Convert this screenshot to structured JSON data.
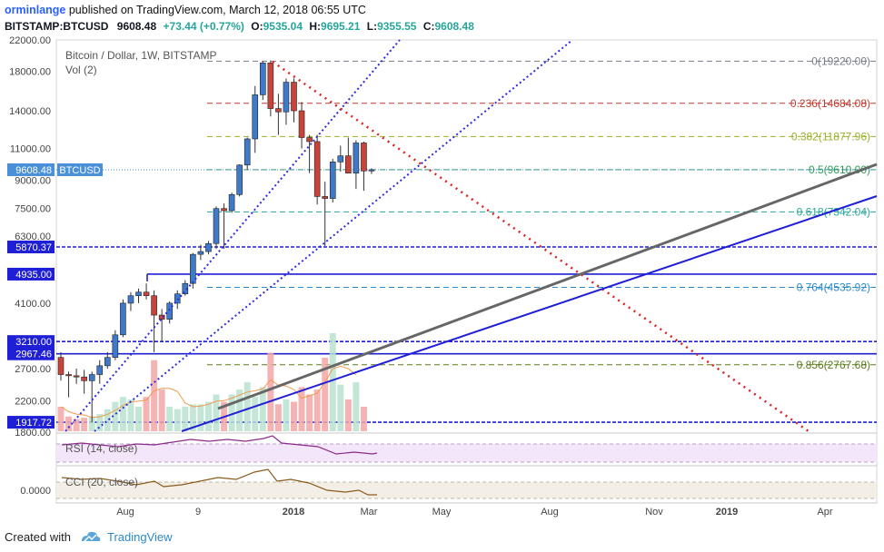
{
  "header": {
    "username": "orminlange",
    "published_text": " published on TradingView.com, March 12, 2018 06:55 UTC",
    "symbol": "BITSTAMP:BTCUSD",
    "last": "9608.48",
    "change": "+73.44 (+0.77%)",
    "ohlc": {
      "o_label": "O:",
      "o": "9535.04",
      "h_label": "H:",
      "h": "9695.21",
      "l_label": "L:",
      "l": "9355.55",
      "c_label": "C:",
      "c": "9608.48"
    }
  },
  "legend": {
    "title": "Bitcoin / Dollar, 1W, BITSTAMP",
    "vol": "Vol (2)",
    "rsi": "RSI (14, close)",
    "cci": "CCI (20, close)"
  },
  "price_axis": {
    "ticks": [
      "22000.00",
      "18000.00",
      "14000.00",
      "11000.00",
      "9000.00",
      "7500.00",
      "6300.00",
      "4100.00",
      "2700.00",
      "2200.00",
      "1800.00"
    ],
    "badges": [
      {
        "label": "9608.48",
        "color": "#4a90d9",
        "value": 9608.48
      },
      {
        "label": "5870.37",
        "color": "#1f1fd6",
        "value": 5870.37
      },
      {
        "label": "4935.00",
        "color": "#1f1fd6",
        "value": 4935.0
      },
      {
        "label": "3210.00",
        "color": "#1f1fd6",
        "value": 3210.0
      },
      {
        "label": "2967.46",
        "color": "#1f1fd6",
        "value": 2967.46
      },
      {
        "label": "1917.72",
        "color": "#1f1fd6",
        "value": 1917.72
      }
    ],
    "symbol_tag": "BTCUSD",
    "cci_tick": "0.0000"
  },
  "time_axis": [
    "Aug",
    "9",
    "2018",
    "Mar",
    "May",
    "Aug",
    "Nov",
    "2019",
    "Apr"
  ],
  "fib_levels": [
    {
      "ratio": "0",
      "label": "0(19220.00)",
      "price": 19220,
      "color": "#787b86"
    },
    {
      "ratio": "0.236",
      "label": "0.236(14684.08)",
      "price": 14684.08,
      "color": "#c0392b"
    },
    {
      "ratio": "0.382",
      "label": "0.382(11877.96)",
      "price": 11877.96,
      "color": "#9bb02a"
    },
    {
      "ratio": "0.5",
      "label": "0.5(9610.00)",
      "price": 9610,
      "color": "#2e9e5b"
    },
    {
      "ratio": "0.618",
      "label": "0.618(7342.04)",
      "price": 7342.04,
      "color": "#26a69a"
    },
    {
      "ratio": "0.764",
      "label": "0.764(4535.92)",
      "price": 4535.92,
      "color": "#2a8ac8"
    },
    {
      "ratio": "0.856",
      "label": "0.856(2767.68)",
      "price": 2767.68,
      "color": "#5a7a1a"
    }
  ],
  "chart_data": {
    "type": "candlestick",
    "series_name": "BTCUSD weekly",
    "candles": [
      {
        "o": 2900,
        "h": 3000,
        "l": 2500,
        "c": 2600
      },
      {
        "o": 2600,
        "h": 2650,
        "l": 2250,
        "c": 2580
      },
      {
        "o": 2580,
        "h": 2700,
        "l": 2450,
        "c": 2560
      },
      {
        "o": 2560,
        "h": 2680,
        "l": 2300,
        "c": 2500
      },
      {
        "o": 2500,
        "h": 2650,
        "l": 1917.72,
        "c": 2600
      },
      {
        "o": 2600,
        "h": 2850,
        "l": 2450,
        "c": 2750
      },
      {
        "o": 2750,
        "h": 3000,
        "l": 2700,
        "c": 2900
      },
      {
        "o": 2900,
        "h": 3450,
        "l": 2850,
        "c": 3350
      },
      {
        "o": 3350,
        "h": 4200,
        "l": 3300,
        "c": 4100
      },
      {
        "o": 4100,
        "h": 4400,
        "l": 3900,
        "c": 4300
      },
      {
        "o": 4300,
        "h": 4500,
        "l": 4100,
        "c": 4400
      },
      {
        "o": 4400,
        "h": 4650,
        "l": 4200,
        "c": 4300
      },
      {
        "o": 4300,
        "h": 4450,
        "l": 3000,
        "c": 3800
      },
      {
        "o": 3800,
        "h": 3950,
        "l": 3200,
        "c": 3700
      },
      {
        "o": 3700,
        "h": 4150,
        "l": 3600,
        "c": 4100
      },
      {
        "o": 4100,
        "h": 4450,
        "l": 3950,
        "c": 4350
      },
      {
        "o": 4350,
        "h": 4750,
        "l": 4300,
        "c": 4650
      },
      {
        "o": 4650,
        "h": 5650,
        "l": 4500,
        "c": 5600
      },
      {
        "o": 5600,
        "h": 5950,
        "l": 5400,
        "c": 5700
      },
      {
        "o": 5700,
        "h": 6100,
        "l": 5600,
        "c": 6000
      },
      {
        "o": 6000,
        "h": 7600,
        "l": 5800,
        "c": 7500
      },
      {
        "o": 7500,
        "h": 7750,
        "l": 5800,
        "c": 7400
      },
      {
        "o": 7400,
        "h": 8300,
        "l": 7300,
        "c": 8200
      },
      {
        "o": 8200,
        "h": 9950,
        "l": 8100,
        "c": 9900
      },
      {
        "o": 9900,
        "h": 11800,
        "l": 9600,
        "c": 11700
      },
      {
        "o": 11700,
        "h": 16400,
        "l": 10700,
        "c": 15500
      },
      {
        "o": 15500,
        "h": 19220,
        "l": 15000,
        "c": 19000
      },
      {
        "o": 19000,
        "h": 19300,
        "l": 13500,
        "c": 14200
      },
      {
        "o": 14200,
        "h": 15600,
        "l": 12000,
        "c": 13900
      },
      {
        "o": 13900,
        "h": 17200,
        "l": 12800,
        "c": 16800
      },
      {
        "o": 16800,
        "h": 17200,
        "l": 13000,
        "c": 14000
      },
      {
        "o": 14000,
        "h": 14800,
        "l": 11000,
        "c": 11800
      },
      {
        "o": 11800,
        "h": 12000,
        "l": 9400,
        "c": 11500
      },
      {
        "o": 11500,
        "h": 12000,
        "l": 7700,
        "c": 8100
      },
      {
        "o": 8100,
        "h": 8900,
        "l": 5900,
        "c": 8000
      },
      {
        "o": 8000,
        "h": 10300,
        "l": 7800,
        "c": 10100
      },
      {
        "o": 10100,
        "h": 11200,
        "l": 9500,
        "c": 10500
      },
      {
        "o": 10500,
        "h": 11800,
        "l": 9400,
        "c": 9400
      },
      {
        "o": 9400,
        "h": 11600,
        "l": 8500,
        "c": 11400
      },
      {
        "o": 11400,
        "h": 11500,
        "l": 8400,
        "c": 9535.04
      },
      {
        "o": 9535.04,
        "h": 9695.21,
        "l": 9355.55,
        "c": 9608.48
      }
    ],
    "volume": [
      20,
      12,
      10,
      11,
      12,
      14,
      18,
      24,
      28,
      26,
      20,
      28,
      58,
      34,
      20,
      18,
      20,
      22,
      22,
      24,
      30,
      24,
      30,
      34,
      40,
      28,
      36,
      64,
      22,
      26,
      24,
      36,
      30,
      34,
      60,
      80,
      38,
      26,
      40,
      20,
      0
    ],
    "ylim": [
      1800,
      22000
    ],
    "yscale": "log"
  }
}
